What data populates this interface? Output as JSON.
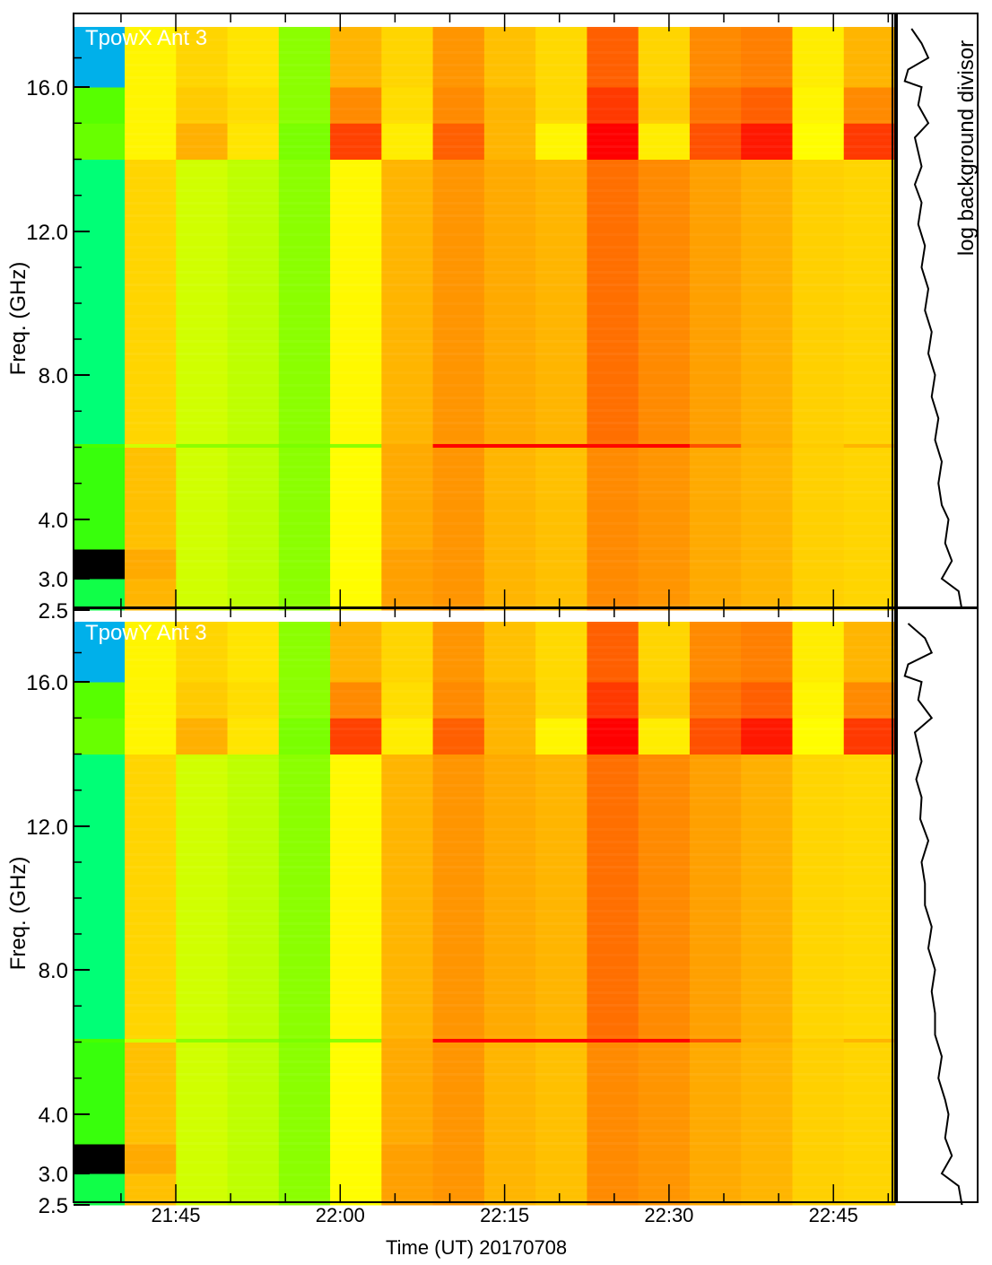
{
  "chart_data": {
    "type": "heatmap",
    "xlabel": "Time (UT) 20170708",
    "ylabel": "Freq. (GHz)",
    "x_ticks": [
      "21:45",
      "22:00",
      "22:15",
      "22:30",
      "22:45"
    ],
    "y_ticks": [
      "2.5",
      "3.0",
      "4.0",
      "8.0",
      "12.0",
      "16.0"
    ],
    "ylim": [
      2.5,
      18
    ],
    "side_label": "log background divisor",
    "colormap": [
      "#0070ff",
      "#00ffd0",
      "#00ff60",
      "#40ff00",
      "#a0ff00",
      "#ffff00",
      "#ffd200",
      "#ff9600",
      "#ff5a00",
      "#ff0000"
    ],
    "bands": [
      {
        "f": [
          2.5,
          3.0
        ]
      },
      {
        "f": [
          3.0,
          3.5
        ]
      },
      {
        "f": [
          3.5,
          6.0
        ]
      },
      {
        "f": [
          6.0,
          6.1
        ]
      },
      {
        "f": [
          6.1,
          14.0
        ]
      },
      {
        "f": [
          14.0,
          15.0
        ]
      },
      {
        "f": [
          15.0,
          16.0
        ]
      },
      {
        "f": [
          16.0,
          18.0
        ]
      }
    ],
    "panels": [
      {
        "title": "TpowX Ant 3",
        "values": [
          [
            0.25,
            0.72,
            0.5,
            0.48,
            0.42,
            0.56,
            0.76,
            0.78,
            0.72,
            0.7,
            0.8,
            0.78,
            0.74,
            0.72,
            0.67,
            0.66
          ],
          [
            null,
            0.74,
            0.5,
            0.48,
            0.42,
            0.56,
            0.76,
            0.78,
            0.72,
            0.7,
            0.8,
            0.78,
            0.74,
            0.72,
            0.67,
            0.66
          ],
          [
            0.32,
            0.7,
            0.5,
            0.48,
            0.42,
            0.56,
            0.74,
            0.78,
            0.72,
            0.7,
            0.8,
            0.78,
            0.74,
            0.72,
            0.67,
            0.66
          ],
          [
            0.34,
            0.5,
            0.42,
            0.42,
            0.4,
            0.42,
            0.74,
            1.0,
            1.0,
            1.0,
            0.99,
            1.0,
            0.9,
            0.74,
            0.68,
            0.72
          ],
          [
            0.2,
            0.66,
            0.5,
            0.48,
            0.42,
            0.57,
            0.72,
            0.78,
            0.74,
            0.72,
            0.85,
            0.8,
            0.76,
            0.73,
            0.67,
            0.66
          ],
          [
            0.38,
            0.58,
            0.73,
            0.62,
            0.4,
            0.92,
            0.6,
            0.88,
            0.72,
            0.58,
            1.0,
            0.6,
            0.9,
            0.97,
            0.56,
            0.93
          ],
          [
            0.36,
            0.58,
            0.68,
            0.64,
            0.42,
            0.8,
            0.64,
            0.8,
            0.72,
            0.65,
            0.93,
            0.68,
            0.84,
            0.88,
            0.58,
            0.8
          ],
          [
            0.05,
            0.58,
            0.66,
            0.62,
            0.42,
            0.72,
            0.66,
            0.78,
            0.7,
            0.65,
            0.88,
            0.66,
            0.8,
            0.82,
            0.6,
            0.72
          ]
        ],
        "divisor": [
          [
            18,
            0.15
          ],
          [
            17.5,
            0.3
          ],
          [
            17,
            0.4
          ],
          [
            16.6,
            0.1
          ],
          [
            16.2,
            0.05
          ],
          [
            16,
            0.3
          ],
          [
            15.5,
            0.25
          ],
          [
            15,
            0.4
          ],
          [
            14.6,
            0.2
          ],
          [
            14.2,
            0.25
          ],
          [
            13.8,
            0.3
          ],
          [
            13.3,
            0.2
          ],
          [
            12.8,
            0.3
          ],
          [
            12.2,
            0.25
          ],
          [
            11.6,
            0.35
          ],
          [
            11,
            0.3
          ],
          [
            10.4,
            0.4
          ],
          [
            9.8,
            0.35
          ],
          [
            9.2,
            0.45
          ],
          [
            8.6,
            0.4
          ],
          [
            8,
            0.5
          ],
          [
            7.4,
            0.45
          ],
          [
            6.8,
            0.55
          ],
          [
            6.2,
            0.5
          ],
          [
            5.6,
            0.6
          ],
          [
            5,
            0.55
          ],
          [
            4.4,
            0.6
          ],
          [
            4,
            0.7
          ],
          [
            3.6,
            0.65
          ],
          [
            3.3,
            0.75
          ],
          [
            3.0,
            0.6
          ],
          [
            2.8,
            0.85
          ],
          [
            2.5,
            0.9
          ]
        ]
      },
      {
        "title": "TpowY Ant 3",
        "values": [
          [
            0.25,
            0.7,
            0.5,
            0.48,
            0.42,
            0.56,
            0.76,
            0.78,
            0.72,
            0.7,
            0.8,
            0.78,
            0.74,
            0.72,
            0.67,
            0.66
          ],
          [
            null,
            0.74,
            0.5,
            0.48,
            0.42,
            0.56,
            0.76,
            0.78,
            0.72,
            0.7,
            0.8,
            0.78,
            0.74,
            0.72,
            0.67,
            0.66
          ],
          [
            0.32,
            0.7,
            0.5,
            0.48,
            0.42,
            0.56,
            0.74,
            0.78,
            0.72,
            0.7,
            0.8,
            0.78,
            0.74,
            0.72,
            0.67,
            0.66
          ],
          [
            0.34,
            0.5,
            0.42,
            0.42,
            0.4,
            0.42,
            0.74,
            1.0,
            1.0,
            1.0,
            0.99,
            1.0,
            0.9,
            0.74,
            0.68,
            0.72
          ],
          [
            0.2,
            0.66,
            0.5,
            0.48,
            0.42,
            0.57,
            0.72,
            0.78,
            0.74,
            0.72,
            0.85,
            0.8,
            0.76,
            0.73,
            0.66,
            0.65
          ],
          [
            0.38,
            0.58,
            0.73,
            0.62,
            0.4,
            0.92,
            0.6,
            0.88,
            0.72,
            0.58,
            1.0,
            0.6,
            0.9,
            0.97,
            0.56,
            0.93
          ],
          [
            0.36,
            0.58,
            0.68,
            0.64,
            0.42,
            0.8,
            0.64,
            0.8,
            0.72,
            0.65,
            0.93,
            0.68,
            0.84,
            0.88,
            0.58,
            0.8
          ],
          [
            0.05,
            0.58,
            0.66,
            0.62,
            0.42,
            0.72,
            0.66,
            0.78,
            0.7,
            0.65,
            0.88,
            0.66,
            0.8,
            0.82,
            0.6,
            0.72
          ]
        ],
        "divisor": [
          [
            18,
            0.1
          ],
          [
            17.5,
            0.35
          ],
          [
            17,
            0.45
          ],
          [
            16.6,
            0.1
          ],
          [
            16.2,
            0.05
          ],
          [
            16,
            0.3
          ],
          [
            15.5,
            0.25
          ],
          [
            15,
            0.45
          ],
          [
            14.6,
            0.2
          ],
          [
            14.2,
            0.25
          ],
          [
            13.8,
            0.3
          ],
          [
            13.3,
            0.22
          ],
          [
            12.8,
            0.3
          ],
          [
            12.2,
            0.28
          ],
          [
            11.6,
            0.4
          ],
          [
            11,
            0.3
          ],
          [
            10.4,
            0.35
          ],
          [
            9.8,
            0.35
          ],
          [
            9.2,
            0.45
          ],
          [
            8.6,
            0.4
          ],
          [
            8,
            0.5
          ],
          [
            7.4,
            0.45
          ],
          [
            6.8,
            0.5
          ],
          [
            6.2,
            0.5
          ],
          [
            5.6,
            0.6
          ],
          [
            5,
            0.55
          ],
          [
            4.4,
            0.65
          ],
          [
            4,
            0.7
          ],
          [
            3.6,
            0.65
          ],
          [
            3.3,
            0.75
          ],
          [
            3.0,
            0.6
          ],
          [
            2.8,
            0.85
          ],
          [
            2.5,
            0.9
          ]
        ]
      }
    ]
  }
}
